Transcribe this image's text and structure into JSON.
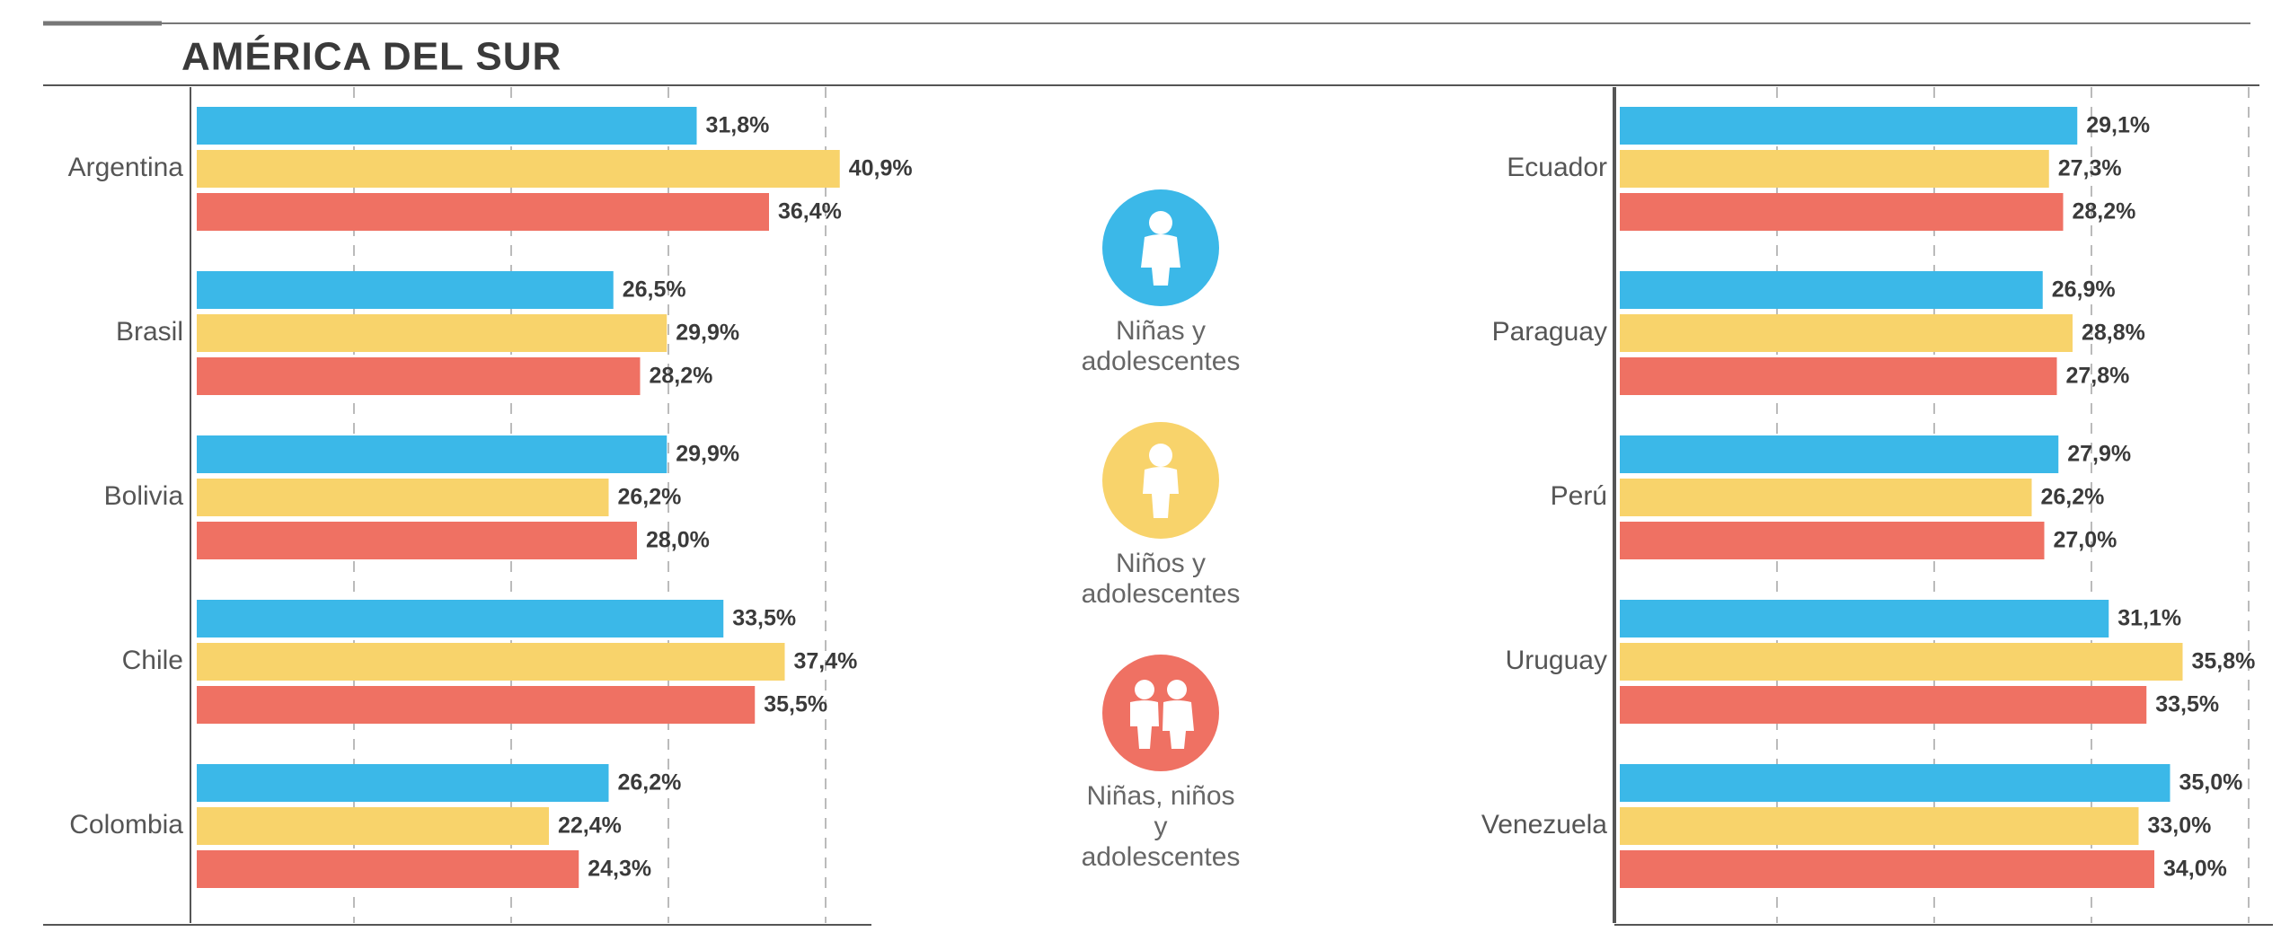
{
  "chart_data": [
    {
      "type": "bar",
      "orientation": "horizontal",
      "title": "AMÉRICA DEL SUR",
      "categories": [
        "Argentina",
        "Brasil",
        "Bolivia",
        "Chile",
        "Colombia"
      ],
      "series": [
        {
          "name": "Niñas y adolescentes",
          "color": "#3bb8e8",
          "values": [
            31.8,
            26.5,
            29.9,
            33.5,
            26.2
          ],
          "value_labels": [
            "31,8%",
            "26,5%",
            "29,9%",
            "33,5%",
            "26,2%"
          ]
        },
        {
          "name": "Niños y adolescentes",
          "color": "#f8d36b",
          "values": [
            40.9,
            29.9,
            26.2,
            37.4,
            22.4
          ],
          "value_labels": [
            "40,9%",
            "29,9%",
            "26,2%",
            "37,4%",
            "22,4%"
          ]
        },
        {
          "name": "Niñas, niños y adolescentes",
          "color": "#ef7163",
          "values": [
            36.4,
            28.2,
            28.0,
            35.5,
            24.3
          ],
          "value_labels": [
            "36,4%",
            "28,2%",
            "28,0%",
            "35,5%",
            "24,3%"
          ]
        }
      ],
      "xlim": [
        0,
        42
      ],
      "xticks": [
        0,
        10,
        20,
        30,
        40
      ],
      "grid": true
    },
    {
      "type": "bar",
      "orientation": "horizontal",
      "categories": [
        "Ecuador",
        "Paraguay",
        "Perú",
        "Uruguay",
        "Venezuela"
      ],
      "series": [
        {
          "color": "#3bb8e8",
          "values": [
            29.1,
            26.9,
            27.9,
            31.1,
            35.0
          ],
          "value_labels": [
            "29,1%",
            "26,9%",
            "27,9%",
            "31,1%",
            "35,0%"
          ]
        },
        {
          "color": "#f8d36b",
          "values": [
            27.3,
            28.8,
            26.2,
            35.8,
            33.0
          ],
          "value_labels": [
            "27,3%",
            "28,8%",
            "26,2%",
            "35,8%",
            "33,0%"
          ]
        },
        {
          "color": "#ef7163",
          "values": [
            28.2,
            27.8,
            27.0,
            33.5,
            34.0
          ],
          "value_labels": [
            "28,2%",
            "27,8%",
            "27,0%",
            "33,5%",
            "34,0%"
          ]
        }
      ],
      "xlim": [
        0,
        42
      ],
      "xticks": [
        0,
        10,
        20,
        30,
        40
      ],
      "grid": true
    }
  ]
}
